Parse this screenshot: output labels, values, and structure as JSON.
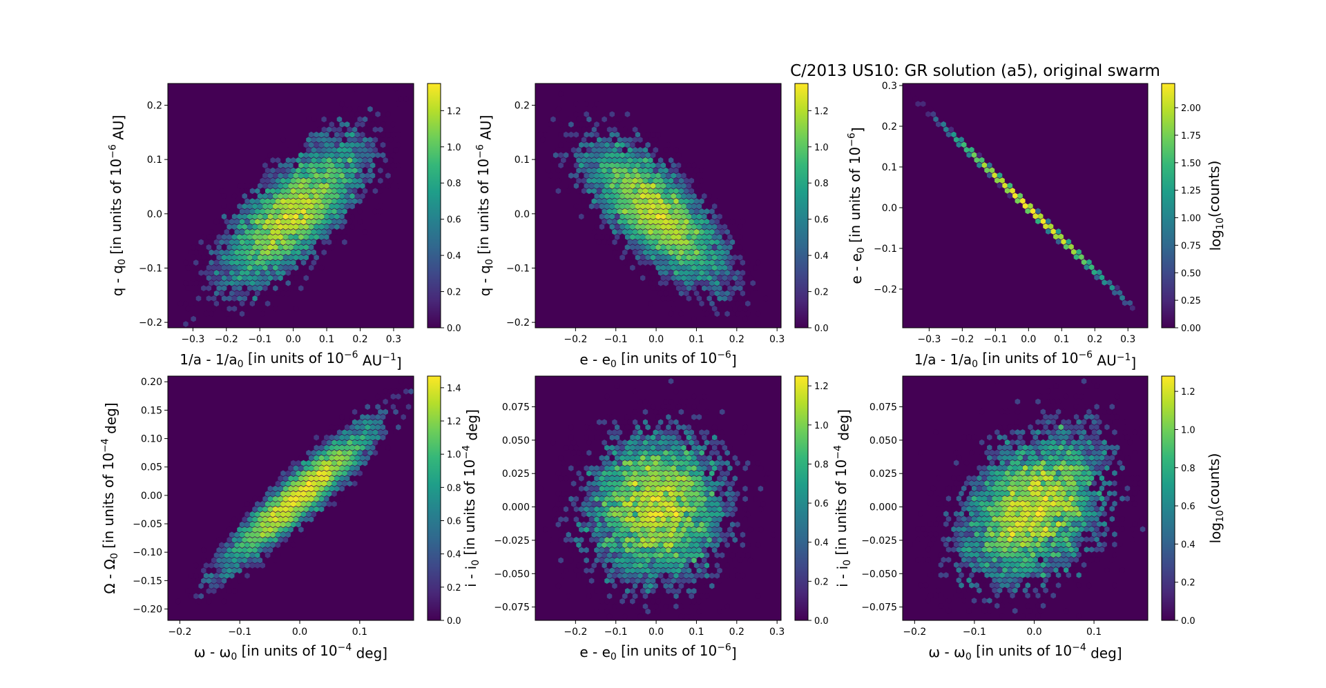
{
  "figure_title": "C/2013 US10: GR solution (a5), original swarm",
  "colors": {
    "viridis": [
      "#440154",
      "#482878",
      "#3e4989",
      "#31688e",
      "#26828e",
      "#1f9e89",
      "#35b779",
      "#6ece58",
      "#b5de2b",
      "#fde725"
    ],
    "background": "#440154"
  },
  "chart_data": [
    {
      "type": "heatmap",
      "subtype": "hexbin",
      "xlabel": "1/a - 1/a0 [in units of 10^-6 AU^-1]",
      "ylabel": "q - q0 [in units of 10^-6 AU]",
      "xlim": [
        -0.375,
        0.36
      ],
      "ylim": [
        -0.21,
        0.24
      ],
      "xticks": [
        -0.3,
        -0.2,
        -0.1,
        0.0,
        0.1,
        0.2,
        0.3
      ],
      "xtick_labels": [
        "−0.3",
        "−0.2",
        "−0.1",
        "0.0",
        "0.1",
        "0.2",
        "0.3"
      ],
      "yticks": [
        -0.2,
        -0.1,
        0.0,
        0.1,
        0.2
      ],
      "ytick_labels": [
        "−0.2",
        "−0.1",
        "0.0",
        "0.1",
        "0.2"
      ],
      "colorbar": {
        "label": "",
        "range": [
          0,
          1.35
        ],
        "ticks": [
          0,
          0.2,
          0.4,
          0.6,
          0.8,
          1.0,
          1.2
        ],
        "tick_labels": [
          "0.0",
          "0.2",
          "0.4",
          "0.6",
          "0.8",
          "1.0",
          "1.2"
        ]
      },
      "distribution": {
        "center": [
          0.0,
          0.0
        ],
        "sigma": [
          0.105,
          0.065
        ],
        "correlation": 0.72,
        "max_log10_count": 1.33
      }
    },
    {
      "type": "heatmap",
      "subtype": "hexbin",
      "xlabel": "e - e0 [in units of 10^-6]",
      "ylabel": "q - q0 [in units of 10^-6 AU]",
      "xlim": [
        -0.3,
        0.31
      ],
      "ylim": [
        -0.21,
        0.24
      ],
      "xticks": [
        -0.2,
        -0.1,
        0.0,
        0.1,
        0.2,
        0.3
      ],
      "xtick_labels": [
        "−0.2",
        "−0.1",
        "0.0",
        "0.1",
        "0.2",
        "0.3"
      ],
      "yticks": [
        -0.2,
        -0.1,
        0.0,
        0.1,
        0.2
      ],
      "ytick_labels": [
        "−0.2",
        "−0.1",
        "0.0",
        "0.1",
        "0.2"
      ],
      "colorbar": {
        "label": "",
        "range": [
          0,
          1.35
        ],
        "ticks": [
          0,
          0.2,
          0.4,
          0.6,
          0.8,
          1.0,
          1.2
        ],
        "tick_labels": [
          "0.0",
          "0.2",
          "0.4",
          "0.6",
          "0.8",
          "1.0",
          "1.2"
        ]
      },
      "distribution": {
        "center": [
          0.0,
          0.0
        ],
        "sigma": [
          0.085,
          0.065
        ],
        "correlation": -0.72,
        "max_log10_count": 1.33
      }
    },
    {
      "type": "heatmap",
      "subtype": "hexbin",
      "xlabel": "1/a - 1/a0 [in units of 10^-6 AU^-1]",
      "ylabel": "e - e0 [in units of 10^-6]",
      "xlim": [
        -0.38,
        0.36
      ],
      "ylim": [
        -0.295,
        0.305
      ],
      "xticks": [
        -0.3,
        -0.2,
        -0.1,
        0.0,
        0.1,
        0.2,
        0.3
      ],
      "xtick_labels": [
        "−0.3",
        "−0.2",
        "−0.1",
        "0.0",
        "0.1",
        "0.2",
        "0.3"
      ],
      "yticks": [
        -0.2,
        -0.1,
        0.0,
        0.1,
        0.2,
        0.3
      ],
      "ytick_labels": [
        "−0.2",
        "−0.1",
        "0.0",
        "0.1",
        "0.2",
        "0.3"
      ],
      "colorbar": {
        "label": "log10(counts)",
        "range": [
          0,
          2.22
        ],
        "ticks": [
          0,
          0.25,
          0.5,
          0.75,
          1.0,
          1.25,
          1.5,
          1.75,
          2.0
        ],
        "tick_labels": [
          "0.00",
          "0.25",
          "0.50",
          "0.75",
          "1.00",
          "1.25",
          "1.50",
          "1.75",
          "2.00"
        ]
      },
      "distribution": {
        "center": [
          0.0,
          0.0
        ],
        "sigma": [
          0.1,
          0.1
        ],
        "correlation": -1.0,
        "slope": -0.78,
        "max_log10_count": 2.22
      }
    },
    {
      "type": "heatmap",
      "subtype": "hexbin",
      "xlabel": "ω - ω0 [in units of 10^-4 deg]",
      "ylabel": "Ω - Ω0 [in units of 10^-4 deg]",
      "xlim": [
        -0.22,
        0.19
      ],
      "ylim": [
        -0.22,
        0.21
      ],
      "xticks": [
        -0.2,
        -0.1,
        0.0,
        0.1
      ],
      "xtick_labels": [
        "−0.2",
        "−0.1",
        "0.0",
        "0.1"
      ],
      "yticks": [
        -0.2,
        -0.15,
        -0.1,
        -0.05,
        0.0,
        0.05,
        0.1,
        0.15,
        0.2
      ],
      "ytick_labels": [
        "−0.20",
        "−0.15",
        "−0.10",
        "−0.05",
        "0.00",
        "0.05",
        "0.10",
        "0.15",
        "0.20"
      ],
      "colorbar": {
        "label": "",
        "range": [
          0,
          1.47
        ],
        "ticks": [
          0,
          0.2,
          0.4,
          0.6,
          0.8,
          1.0,
          1.2,
          1.4
        ],
        "tick_labels": [
          "0.0",
          "0.2",
          "0.4",
          "0.6",
          "0.8",
          "1.0",
          "1.2",
          "1.4"
        ]
      },
      "distribution": {
        "center": [
          0.0,
          0.0
        ],
        "sigma": [
          0.06,
          0.06
        ],
        "correlation": 0.93,
        "max_log10_count": 1.47
      }
    },
    {
      "type": "heatmap",
      "subtype": "hexbin",
      "xlabel": "e - e0 [in units of 10^-6]",
      "ylabel": "i - i0 [in units of 10^-4 deg]",
      "xlim": [
        -0.3,
        0.31
      ],
      "ylim": [
        -0.085,
        0.098
      ],
      "xticks": [
        -0.2,
        -0.1,
        0.0,
        0.1,
        0.2,
        0.3
      ],
      "xtick_labels": [
        "−0.2",
        "−0.1",
        "0.0",
        "0.1",
        "0.2",
        "0.3"
      ],
      "yticks": [
        -0.075,
        -0.05,
        -0.025,
        0.0,
        0.025,
        0.05,
        0.075
      ],
      "ytick_labels": [
        "−0.075",
        "−0.050",
        "−0.025",
        "0.000",
        "0.025",
        "0.050",
        "0.075"
      ],
      "colorbar": {
        "label": "",
        "range": [
          0,
          1.25
        ],
        "ticks": [
          0,
          0.2,
          0.4,
          0.6,
          0.8,
          1.0,
          1.2
        ],
        "tick_labels": [
          "0.0",
          "0.2",
          "0.4",
          "0.6",
          "0.8",
          "1.0",
          "1.2"
        ]
      },
      "distribution": {
        "center": [
          0.0,
          0.0
        ],
        "sigma": [
          0.085,
          0.028
        ],
        "correlation": 0.05,
        "max_log10_count": 1.25
      }
    },
    {
      "type": "heatmap",
      "subtype": "hexbin",
      "xlabel": "ω - ω0 [in units of 10^-4 deg]",
      "ylabel": "i - i0 [in units of 10^-4 deg]",
      "xlim": [
        -0.22,
        0.19
      ],
      "ylim": [
        -0.085,
        0.098
      ],
      "xticks": [
        -0.2,
        -0.1,
        0.0,
        0.1
      ],
      "xtick_labels": [
        "−0.2",
        "−0.1",
        "0.0",
        "0.1"
      ],
      "yticks": [
        -0.075,
        -0.05,
        -0.025,
        0.0,
        0.025,
        0.05,
        0.075
      ],
      "ytick_labels": [
        "−0.075",
        "−0.050",
        "−0.025",
        "0.000",
        "0.025",
        "0.050",
        "0.075"
      ],
      "colorbar": {
        "label": "log10(counts)",
        "range": [
          0,
          1.28
        ],
        "ticks": [
          0,
          0.2,
          0.4,
          0.6,
          0.8,
          1.0,
          1.2
        ],
        "tick_labels": [
          "0.0",
          "0.2",
          "0.4",
          "0.6",
          "0.8",
          "1.0",
          "1.2"
        ]
      },
      "distribution": {
        "center": [
          0.0,
          0.0
        ],
        "sigma": [
          0.06,
          0.028
        ],
        "correlation": 0.35,
        "max_log10_count": 1.28
      }
    }
  ]
}
